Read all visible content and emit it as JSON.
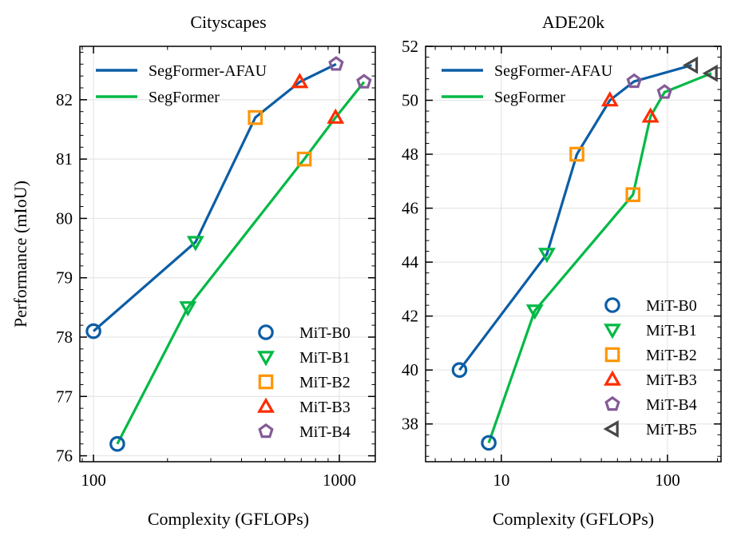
{
  "colors": {
    "afau": "#0C5DA5",
    "segformer": "#00B945",
    "b0": "#0C5DA5",
    "b1": "#00B945",
    "b2": "#FF9500",
    "b3": "#FF2C00",
    "b4": "#845B97",
    "b5": "#474747"
  },
  "chart_data": [
    {
      "type": "line",
      "title": "Cityscapes",
      "xlabel": "Complexity (GFLOPs)",
      "ylabel": "Performance (mIoU)",
      "xscale": "log",
      "xlim": [
        88,
        1400
      ],
      "ylim": [
        75.9,
        82.9
      ],
      "xticks": [
        100,
        1000
      ],
      "xtick_labels": [
        "100",
        "1000"
      ],
      "yticks": [
        76,
        77,
        78,
        79,
        80,
        81,
        82
      ],
      "ytick_labels": [
        "76",
        "77",
        "78",
        "79",
        "80",
        "81",
        "82"
      ],
      "series": [
        {
          "name": "SegFormer-AFAU",
          "color_key": "afau",
          "points": [
            {
              "x": 100,
              "y": 78.1,
              "model": "b0"
            },
            {
              "x": 260,
              "y": 79.6,
              "model": "b1"
            },
            {
              "x": 455,
              "y": 81.7,
              "model": "b2"
            },
            {
              "x": 690,
              "y": 82.3,
              "model": "b3"
            },
            {
              "x": 970,
              "y": 82.6,
              "model": "b4"
            }
          ]
        },
        {
          "name": "SegFormer",
          "color_key": "segformer",
          "points": [
            {
              "x": 125,
              "y": 76.2,
              "model": "b0"
            },
            {
              "x": 242,
              "y": 78.5,
              "model": "b1"
            },
            {
              "x": 720,
              "y": 81.0,
              "model": "b2"
            },
            {
              "x": 965,
              "y": 81.7,
              "model": "b3"
            },
            {
              "x": 1260,
              "y": 82.3,
              "model": "b4"
            }
          ]
        }
      ],
      "line_legend": [
        "SegFormer-AFAU",
        "SegFormer"
      ],
      "marker_legend": [
        {
          "label": "MiT-B0",
          "model": "b0"
        },
        {
          "label": "MiT-B1",
          "model": "b1"
        },
        {
          "label": "MiT-B2",
          "model": "b2"
        },
        {
          "label": "MiT-B3",
          "model": "b3"
        },
        {
          "label": "MiT-B4",
          "model": "b4"
        }
      ]
    },
    {
      "type": "line",
      "title": "ADE20k",
      "xlabel": "Complexity (GFLOPs)",
      "ylabel": "",
      "xscale": "log",
      "xlim": [
        3.5,
        210
      ],
      "ylim": [
        36.6,
        52
      ],
      "xticks": [
        10,
        100
      ],
      "xtick_labels": [
        "10",
        "100"
      ],
      "yticks": [
        38,
        40,
        42,
        44,
        46,
        48,
        50,
        52
      ],
      "ytick_labels": [
        "38",
        "40",
        "42",
        "44",
        "46",
        "48",
        "50",
        "52"
      ],
      "series": [
        {
          "name": "SegFormer-AFAU",
          "color_key": "afau",
          "points": [
            {
              "x": 5.6,
              "y": 40.0,
              "model": "b0"
            },
            {
              "x": 18.8,
              "y": 44.3,
              "model": "b1"
            },
            {
              "x": 28.5,
              "y": 48.0,
              "model": "b2"
            },
            {
              "x": 45.0,
              "y": 50.0,
              "model": "b3"
            },
            {
              "x": 63.0,
              "y": 50.7,
              "model": "b4"
            },
            {
              "x": 140.0,
              "y": 51.3,
              "model": "b5"
            }
          ]
        },
        {
          "name": "SegFormer",
          "color_key": "segformer",
          "points": [
            {
              "x": 8.4,
              "y": 37.3,
              "model": "b0"
            },
            {
              "x": 15.9,
              "y": 42.2,
              "model": "b1"
            },
            {
              "x": 62.0,
              "y": 46.5,
              "model": "b2"
            },
            {
              "x": 79.0,
              "y": 49.4,
              "model": "b3"
            },
            {
              "x": 96.0,
              "y": 50.3,
              "model": "b4"
            },
            {
              "x": 184.0,
              "y": 51.0,
              "model": "b5"
            }
          ]
        }
      ],
      "line_legend": [
        "SegFormer-AFAU",
        "SegFormer"
      ],
      "marker_legend": [
        {
          "label": "MiT-B0",
          "model": "b0"
        },
        {
          "label": "MiT-B1",
          "model": "b1"
        },
        {
          "label": "MiT-B2",
          "model": "b2"
        },
        {
          "label": "MiT-B3",
          "model": "b3"
        },
        {
          "label": "MiT-B4",
          "model": "b4"
        },
        {
          "label": "MiT-B5",
          "model": "b5"
        }
      ]
    }
  ]
}
